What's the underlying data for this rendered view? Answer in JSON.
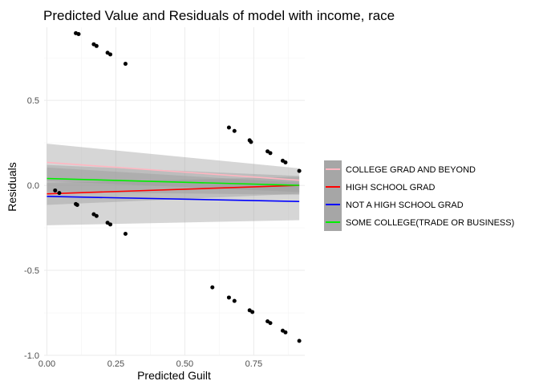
{
  "chart_data": {
    "type": "scatter",
    "title": "Predicted Value and Residuals of model with income, race",
    "xlabel": "Predicted Guilt",
    "ylabel": "Residuals",
    "xlim": [
      -0.01,
      0.935
    ],
    "ylim": [
      -1.0,
      0.93
    ],
    "x_ticks": [
      0.0,
      0.25,
      0.5,
      0.75
    ],
    "x_tick_labels": [
      "0.00",
      "0.25",
      "0.50",
      "0.75"
    ],
    "y_ticks": [
      -1.0,
      -0.5,
      0.0,
      0.5
    ],
    "y_tick_labels": [
      "-1.0",
      "-0.5",
      "0.0",
      "0.5"
    ],
    "grid": true,
    "legend_position": "right",
    "points": [
      {
        "x": 0.03,
        "y": -0.03
      },
      {
        "x": 0.045,
        "y": -0.045
      },
      {
        "x": 0.105,
        "y": 0.895
      },
      {
        "x": 0.115,
        "y": 0.89
      },
      {
        "x": 0.105,
        "y": -0.11
      },
      {
        "x": 0.11,
        "y": -0.115
      },
      {
        "x": 0.17,
        "y": 0.83
      },
      {
        "x": 0.18,
        "y": 0.82
      },
      {
        "x": 0.17,
        "y": -0.17
      },
      {
        "x": 0.18,
        "y": -0.18
      },
      {
        "x": 0.22,
        "y": 0.78
      },
      {
        "x": 0.23,
        "y": 0.77
      },
      {
        "x": 0.22,
        "y": -0.22
      },
      {
        "x": 0.23,
        "y": -0.23
      },
      {
        "x": 0.285,
        "y": 0.715
      },
      {
        "x": 0.285,
        "y": -0.285
      },
      {
        "x": 0.6,
        "y": -0.6
      },
      {
        "x": 0.66,
        "y": 0.34
      },
      {
        "x": 0.66,
        "y": -0.66
      },
      {
        "x": 0.68,
        "y": 0.32
      },
      {
        "x": 0.68,
        "y": -0.68
      },
      {
        "x": 0.735,
        "y": 0.265
      },
      {
        "x": 0.74,
        "y": 0.255
      },
      {
        "x": 0.735,
        "y": -0.735
      },
      {
        "x": 0.745,
        "y": -0.745
      },
      {
        "x": 0.8,
        "y": 0.2
      },
      {
        "x": 0.81,
        "y": 0.19
      },
      {
        "x": 0.8,
        "y": -0.8
      },
      {
        "x": 0.81,
        "y": -0.81
      },
      {
        "x": 0.855,
        "y": 0.145
      },
      {
        "x": 0.865,
        "y": 0.135
      },
      {
        "x": 0.855,
        "y": -0.855
      },
      {
        "x": 0.865,
        "y": -0.865
      },
      {
        "x": 0.915,
        "y": 0.085
      },
      {
        "x": 0.915,
        "y": -0.915
      }
    ],
    "series": [
      {
        "name": "COLLEGE GRAD AND BEYOND",
        "color": "#ffb6c1",
        "x": [
          0.0,
          0.915
        ],
        "y": [
          0.135,
          0.03
        ],
        "ci_lower": [
          0.025,
          -0.04
        ],
        "ci_upper": [
          0.245,
          0.1
        ]
      },
      {
        "name": "HIGH SCHOOL GRAD",
        "color": "#ff0000",
        "x": [
          0.0,
          0.915
        ],
        "y": [
          -0.05,
          0.0
        ],
        "ci_lower": [
          -0.115,
          -0.05
        ],
        "ci_upper": [
          0.015,
          0.05
        ]
      },
      {
        "name": "NOT A HIGH SCHOOL GRAD",
        "color": "#0000ff",
        "x": [
          0.0,
          0.915
        ],
        "y": [
          -0.065,
          -0.095
        ],
        "ci_lower": [
          -0.235,
          -0.205
        ],
        "ci_upper": [
          0.105,
          0.015
        ]
      },
      {
        "name": "SOME COLLEGE(TRADE OR BUSINESS)",
        "color": "#00ee00",
        "x": [
          0.0,
          0.915
        ],
        "y": [
          0.04,
          0.0
        ],
        "ci_lower": [
          -0.04,
          -0.055
        ],
        "ci_upper": [
          0.12,
          0.055
        ]
      }
    ]
  },
  "colors": {
    "ci_band": "#999999",
    "point": "#000000",
    "legend_key_bg": "#a6a6a6"
  }
}
